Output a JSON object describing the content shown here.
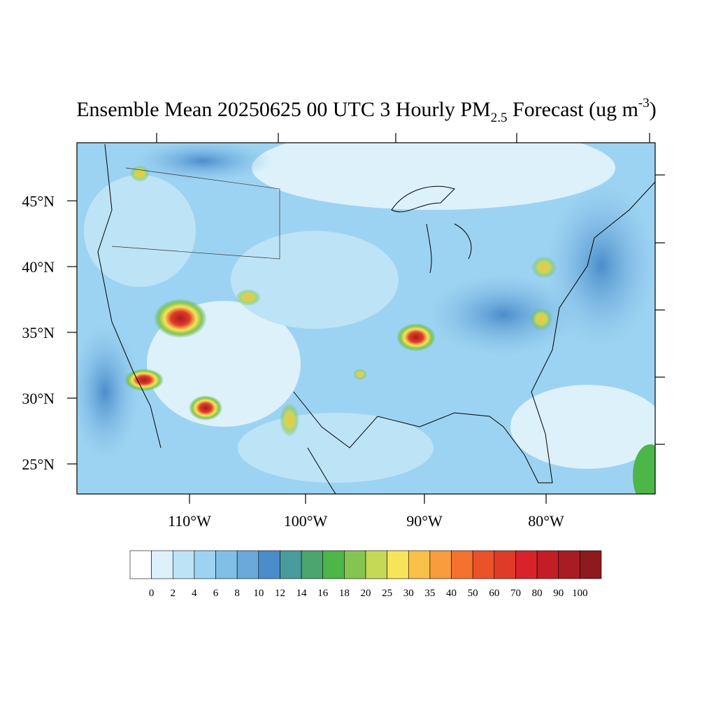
{
  "title": {
    "main": "Ensemble Mean 20250625 00 UTC 3 Hourly PM",
    "subscript": "2.5",
    "after": " Forecast (ug m",
    "superscript": "-3",
    "end": ")"
  },
  "lat_ticks": [
    {
      "value": 45,
      "label": "45°N"
    },
    {
      "value": 40,
      "label": "40°N"
    },
    {
      "value": 35,
      "label": "35°N"
    },
    {
      "value": 30,
      "label": "30°N"
    },
    {
      "value": 25,
      "label": "25°N"
    }
  ],
  "lon_ticks": [
    {
      "value": -110,
      "label": "110°W"
    },
    {
      "value": -100,
      "label": "100°W"
    },
    {
      "value": -90,
      "label": "90°W"
    },
    {
      "value": -80,
      "label": "80°W"
    }
  ],
  "colorbar": {
    "levels": [
      0,
      2,
      4,
      6,
      8,
      10,
      12,
      14,
      16,
      18,
      20,
      25,
      30,
      35,
      40,
      50,
      60,
      70,
      80,
      90,
      100
    ],
    "colors": [
      "#ffffff",
      "#ddf1fb",
      "#bde3f6",
      "#9dd3f2",
      "#82bfe6",
      "#6aa9da",
      "#4b8dcb",
      "#489c9c",
      "#4aa66e",
      "#4cb648",
      "#86c452",
      "#c5d957",
      "#f8e45a",
      "#f9c04a",
      "#f89c3d",
      "#f4712e",
      "#ea5229",
      "#e03b29",
      "#d8232a",
      "#c31d26",
      "#a81c22",
      "#8d1a1e"
    ]
  }
}
